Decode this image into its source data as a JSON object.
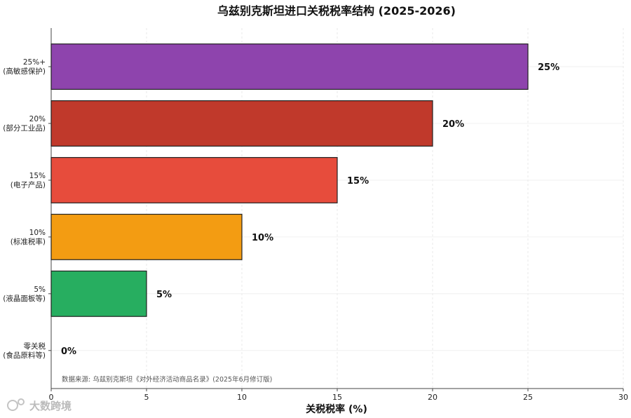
{
  "chart_data": {
    "type": "bar",
    "orientation": "horizontal",
    "title": "乌兹别克斯坦进口关税税率结构 (2025-2026)",
    "xlabel": "关税税率 (%)",
    "ylabel": "",
    "xlim": [
      0,
      30
    ],
    "xticks": [
      0,
      5,
      10,
      15,
      20,
      25,
      30
    ],
    "grid": true,
    "categories": [
      {
        "line1": "25%+",
        "line2": "(高敏感保护)"
      },
      {
        "line1": "20%",
        "line2": "(部分工业品)"
      },
      {
        "line1": "15%",
        "line2": "(电子产品)"
      },
      {
        "line1": "10%",
        "line2": "(标准税率)"
      },
      {
        "line1": "5%",
        "line2": "(液晶面板等)"
      },
      {
        "line1": "零关税",
        "line2": "(食品原料等)"
      }
    ],
    "values": [
      25,
      20,
      15,
      10,
      5,
      0
    ],
    "value_labels": [
      "25%",
      "20%",
      "15%",
      "10%",
      "5%",
      "0%"
    ],
    "colors": [
      "#8e44ad",
      "#c0392b",
      "#e74c3c",
      "#f39c12",
      "#27ae60",
      "#3498db"
    ],
    "source_note": "数据来源: 乌兹别克斯坦《对外经济活动商品名录》(2025年6月修订版)"
  },
  "watermark": "大数跨境"
}
